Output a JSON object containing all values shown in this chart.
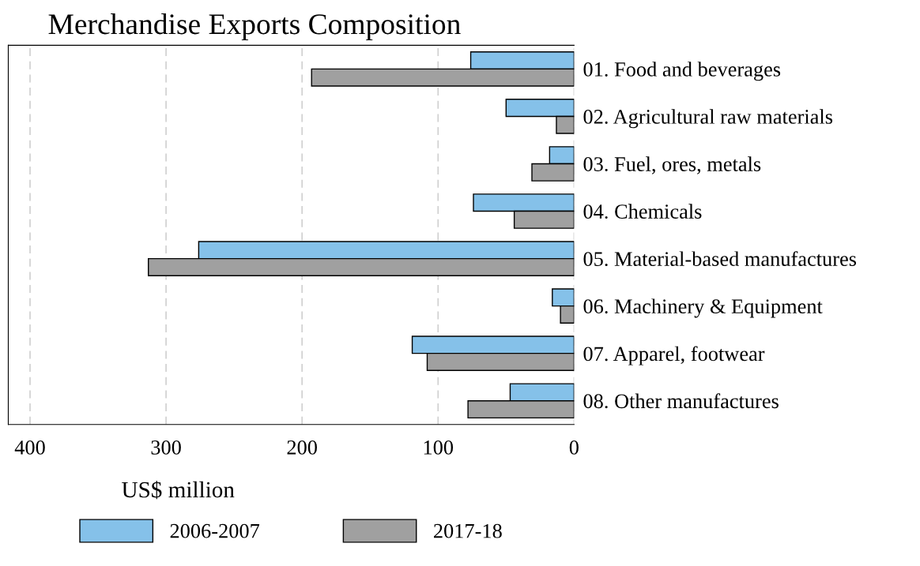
{
  "chart_data": {
    "type": "bar",
    "orientation": "horizontal",
    "title": "Merchandise Exports Composition",
    "xlabel": "US$ million",
    "categories": [
      "01. Food and beverages",
      "02. Agricultural raw materials",
      "03. Fuel, ores, metals",
      "04. Chemicals",
      "05. Material-based manufactures",
      "06. Machinery & Equipment",
      "07. Apparel, footwear",
      "08. Other manufactures"
    ],
    "series": [
      {
        "name": "2006-2007",
        "color": "#85c1e9",
        "values": [
          76,
          50,
          18,
          74,
          276,
          16,
          119,
          47
        ]
      },
      {
        "name": "2017-18",
        "color": "#a0a0a0",
        "values": [
          193,
          13,
          31,
          44,
          313,
          10,
          108,
          78
        ]
      }
    ],
    "xlim": [
      416,
      0
    ],
    "xticks": [
      400,
      300,
      200,
      100,
      0
    ],
    "grid": "x",
    "legend": "bottom"
  }
}
